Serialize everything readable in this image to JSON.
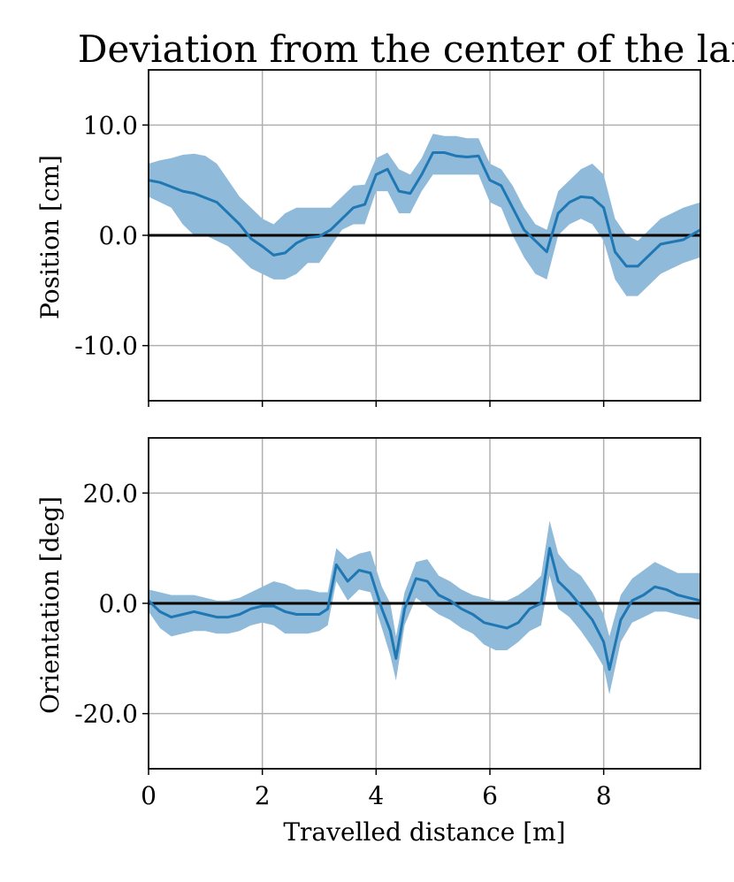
{
  "chart_data": [
    {
      "type": "line",
      "title": "Deviation from the center of the lane",
      "xlabel": "",
      "ylabel": "Position [cm]",
      "xlim": [
        0,
        9.7
      ],
      "ylim": [
        -15,
        15
      ],
      "xticks": [
        0,
        2,
        4,
        6,
        8
      ],
      "xtick_labels": [],
      "yticks": [
        -10,
        0,
        10
      ],
      "ytick_labels": [
        "-10.0",
        "0.0",
        "10.0"
      ],
      "grid": true,
      "reference_line_y": 0,
      "colors": {
        "line": "#1f77b4",
        "band": "#8fbad9",
        "reference": "#000000",
        "grid": "#b0b0b0"
      },
      "series": [
        {
          "x": [
            0.0,
            0.2,
            0.4,
            0.6,
            0.8,
            1.0,
            1.2,
            1.4,
            1.6,
            1.8,
            2.0,
            2.2,
            2.4,
            2.6,
            2.8,
            3.0,
            3.2,
            3.4,
            3.6,
            3.8,
            4.0,
            4.2,
            4.4,
            4.6,
            4.8,
            5.0,
            5.2,
            5.4,
            5.6,
            5.8,
            6.0,
            6.2,
            6.4,
            6.6,
            6.8,
            7.0,
            7.2,
            7.4,
            7.6,
            7.8,
            8.0,
            8.2,
            8.4,
            8.6,
            8.8,
            9.0,
            9.2,
            9.4,
            9.7
          ],
          "y": [
            5.0,
            4.8,
            4.4,
            4.0,
            3.8,
            3.4,
            3.0,
            2.0,
            1.0,
            -0.3,
            -1.0,
            -1.8,
            -1.6,
            -0.7,
            -0.2,
            -0.1,
            0.5,
            1.5,
            2.5,
            2.8,
            5.5,
            6.0,
            4.0,
            3.8,
            5.5,
            7.5,
            7.5,
            7.2,
            7.1,
            7.2,
            5.0,
            4.5,
            2.5,
            0.5,
            -0.5,
            -1.5,
            2.0,
            3.0,
            3.5,
            3.4,
            2.5,
            -1.5,
            -2.8,
            -2.8,
            -1.8,
            -0.8,
            -0.6,
            -0.4,
            0.5
          ],
          "upper": [
            6.5,
            6.8,
            7.0,
            7.3,
            7.4,
            7.2,
            6.5,
            5.0,
            3.5,
            2.5,
            1.5,
            1.0,
            2.0,
            2.5,
            2.5,
            2.5,
            2.5,
            3.5,
            4.5,
            4.6,
            7.0,
            7.5,
            6.0,
            5.5,
            7.0,
            9.2,
            9.0,
            9.0,
            8.8,
            8.8,
            6.5,
            6.0,
            4.5,
            2.5,
            1.0,
            0.5,
            4.0,
            5.0,
            6.0,
            6.5,
            5.5,
            1.5,
            0.0,
            -0.5,
            0.5,
            1.5,
            2.0,
            2.5,
            3.0
          ],
          "lower": [
            3.5,
            3.0,
            2.5,
            1.0,
            0.0,
            0.0,
            -0.5,
            -1.0,
            -2.0,
            -3.0,
            -3.5,
            -4.0,
            -4.0,
            -3.5,
            -2.5,
            -2.5,
            -1.0,
            0.5,
            1.0,
            1.0,
            4.0,
            4.0,
            2.0,
            2.0,
            4.0,
            5.5,
            5.5,
            5.5,
            5.5,
            5.5,
            3.0,
            2.5,
            0.0,
            -2.0,
            -3.5,
            -4.0,
            0.0,
            1.0,
            1.5,
            1.0,
            -0.5,
            -4.0,
            -5.5,
            -5.5,
            -4.5,
            -3.5,
            -3.0,
            -2.5,
            -2.0
          ]
        }
      ]
    },
    {
      "type": "line",
      "title": "",
      "xlabel": "Travelled distance [m]",
      "ylabel": "Orientation [deg]",
      "xlim": [
        0,
        9.7
      ],
      "ylim": [
        -30,
        30
      ],
      "xticks": [
        0,
        2,
        4,
        6,
        8
      ],
      "xtick_labels": [
        "0",
        "2",
        "4",
        "6",
        "8"
      ],
      "yticks": [
        -20,
        0,
        20
      ],
      "ytick_labels": [
        "-20.0",
        "0.0",
        "20.0"
      ],
      "grid": true,
      "reference_line_y": 0,
      "colors": {
        "line": "#1f77b4",
        "band": "#8fbad9",
        "reference": "#000000",
        "grid": "#b0b0b0"
      },
      "series": [
        {
          "x": [
            0.0,
            0.2,
            0.4,
            0.6,
            0.8,
            1.0,
            1.2,
            1.4,
            1.6,
            1.8,
            2.0,
            2.2,
            2.4,
            2.6,
            2.8,
            3.0,
            3.15,
            3.3,
            3.5,
            3.7,
            3.9,
            4.1,
            4.25,
            4.35,
            4.5,
            4.7,
            4.9,
            5.1,
            5.3,
            5.5,
            5.7,
            5.9,
            6.1,
            6.3,
            6.5,
            6.7,
            6.9,
            7.05,
            7.2,
            7.4,
            7.6,
            7.8,
            8.0,
            8.1,
            8.3,
            8.5,
            8.7,
            8.9,
            9.1,
            9.3,
            9.5,
            9.7
          ],
          "y": [
            0.5,
            -1.5,
            -2.5,
            -2.0,
            -1.5,
            -2.0,
            -2.5,
            -2.5,
            -2.0,
            -1.0,
            -0.5,
            -0.5,
            -1.5,
            -2.0,
            -2.0,
            -2.0,
            -1.0,
            7.0,
            4.0,
            6.0,
            5.5,
            -1.0,
            -5.0,
            -10.0,
            -1.0,
            4.5,
            4.0,
            1.5,
            0.5,
            -1.0,
            -2.0,
            -3.5,
            -4.0,
            -4.5,
            -3.5,
            -1.0,
            0.0,
            10.0,
            4.0,
            2.0,
            -0.5,
            -3.0,
            -7.0,
            -12.0,
            -3.0,
            0.5,
            1.5,
            3.0,
            2.5,
            1.5,
            1.0,
            0.5
          ],
          "upper": [
            2.5,
            2.0,
            1.5,
            1.5,
            1.5,
            1.0,
            0.5,
            0.5,
            1.0,
            2.0,
            3.0,
            4.0,
            3.5,
            2.5,
            2.5,
            2.0,
            2.0,
            10.0,
            8.0,
            9.0,
            9.5,
            3.0,
            0.0,
            -6.0,
            2.0,
            7.5,
            8.0,
            5.0,
            4.0,
            2.5,
            1.5,
            1.0,
            0.5,
            0.5,
            1.5,
            3.0,
            5.0,
            15.0,
            9.0,
            6.5,
            5.0,
            2.0,
            -2.0,
            -6.0,
            1.5,
            4.5,
            6.0,
            7.5,
            6.5,
            5.5,
            5.5,
            5.5
          ],
          "lower": [
            -1.5,
            -4.5,
            -6.0,
            -5.5,
            -5.0,
            -5.0,
            -5.5,
            -5.5,
            -5.0,
            -4.0,
            -3.5,
            -4.0,
            -5.5,
            -5.5,
            -5.5,
            -5.0,
            -4.0,
            4.0,
            0.5,
            2.5,
            2.0,
            -4.5,
            -9.5,
            -14.0,
            -4.0,
            1.0,
            -0.5,
            -2.0,
            -3.0,
            -4.5,
            -5.5,
            -7.5,
            -8.5,
            -8.5,
            -7.0,
            -5.0,
            -4.0,
            5.0,
            -1.0,
            -2.5,
            -5.0,
            -8.0,
            -11.5,
            -16.5,
            -7.0,
            -3.5,
            -2.5,
            -1.5,
            -1.5,
            -2.0,
            -2.5,
            -3.0
          ]
        }
      ]
    }
  ]
}
